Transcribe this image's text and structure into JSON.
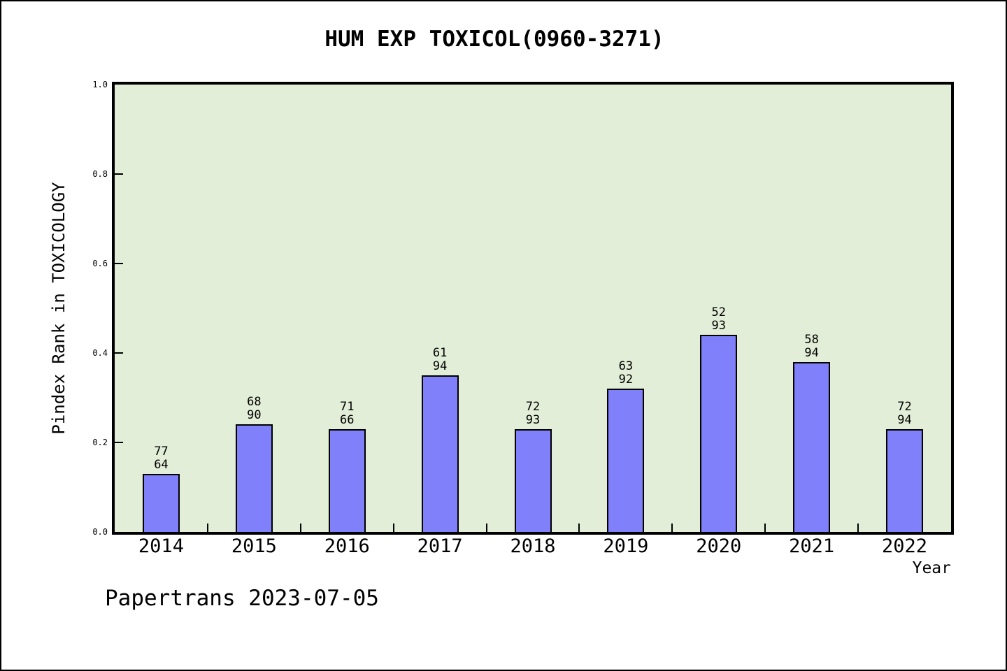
{
  "chart_data": {
    "type": "bar",
    "title": "HUM EXP TOXICOL(0960-3271)",
    "xlabel": "Year",
    "ylabel": "Pindex Rank in TOXICOLOGY",
    "categories": [
      "2014",
      "2015",
      "2016",
      "2017",
      "2018",
      "2019",
      "2020",
      "2021",
      "2022"
    ],
    "values": [
      0.13,
      0.24,
      0.23,
      0.35,
      0.23,
      0.32,
      0.44,
      0.38,
      0.23
    ],
    "bar_annotations": [
      [
        "77",
        "64"
      ],
      [
        "68",
        "90"
      ],
      [
        "71",
        "66"
      ],
      [
        "61",
        "94"
      ],
      [
        "72",
        "93"
      ],
      [
        "63",
        "92"
      ],
      [
        "52",
        "93"
      ],
      [
        "58",
        "94"
      ],
      [
        "72",
        "94"
      ]
    ],
    "ylim": [
      0.0,
      1.0
    ],
    "ytick_values": [
      0.0,
      0.2,
      0.4,
      0.6,
      0.8,
      1.0
    ],
    "ytick_labels": [
      "0.0",
      "0.2",
      "0.4",
      "0.6",
      "0.8",
      "1.0"
    ],
    "grid": "off",
    "legend": "none",
    "colors": {
      "bar_fill": "#8080fa",
      "bar_edge": "#000000",
      "plot_background": "#e2eed7",
      "axis": "#000000",
      "text": "#000000"
    }
  },
  "footer": {
    "label": "Papertrans 2023-07-05"
  }
}
